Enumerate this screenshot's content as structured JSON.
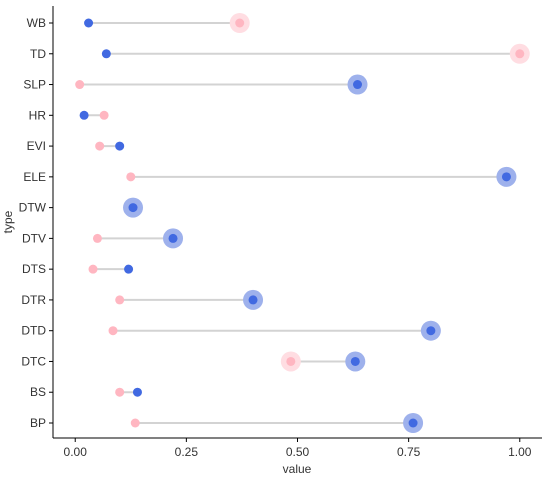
{
  "chart_data": {
    "type": "dumbbell",
    "xlabel": "value",
    "ylabel": "type",
    "xlim": [
      -0.05,
      1.05
    ],
    "xticks": [
      0.0,
      0.25,
      0.5,
      0.75,
      1.0
    ],
    "xtick_labels": [
      "0.00",
      "0.25",
      "0.50",
      "0.75",
      "1.00"
    ],
    "grid": false,
    "legend": "none",
    "colors": {
      "blue": "#4169e1",
      "blue_halo": "#9eb1ec",
      "pink": "#ffb6c1",
      "pink_halo": "#ffdde2",
      "segment": "#d3d3d3",
      "axis": "#000000"
    },
    "categories": [
      "WB",
      "TD",
      "SLP",
      "HR",
      "EVI",
      "ELE",
      "DTW",
      "DTV",
      "DTS",
      "DTR",
      "DTD",
      "DTC",
      "BS",
      "BP"
    ],
    "series": [
      {
        "values": [
          0.03,
          0.07,
          0.635,
          0.02,
          0.1,
          0.97,
          0.13,
          0.22,
          0.12,
          0.4,
          0.8,
          0.63,
          0.14,
          0.76
        ],
        "color_key": "blue",
        "highlight": [
          false,
          false,
          true,
          false,
          false,
          true,
          true,
          true,
          false,
          true,
          true,
          true,
          false,
          true
        ]
      },
      {
        "values": [
          0.37,
          1.0,
          0.01,
          0.065,
          0.055,
          0.125,
          0.12,
          0.05,
          0.04,
          0.1,
          0.085,
          0.485,
          0.1,
          0.135
        ],
        "color_key": "pink",
        "highlight": [
          true,
          true,
          false,
          false,
          false,
          false,
          false,
          false,
          false,
          false,
          false,
          true,
          false,
          false
        ]
      }
    ]
  }
}
